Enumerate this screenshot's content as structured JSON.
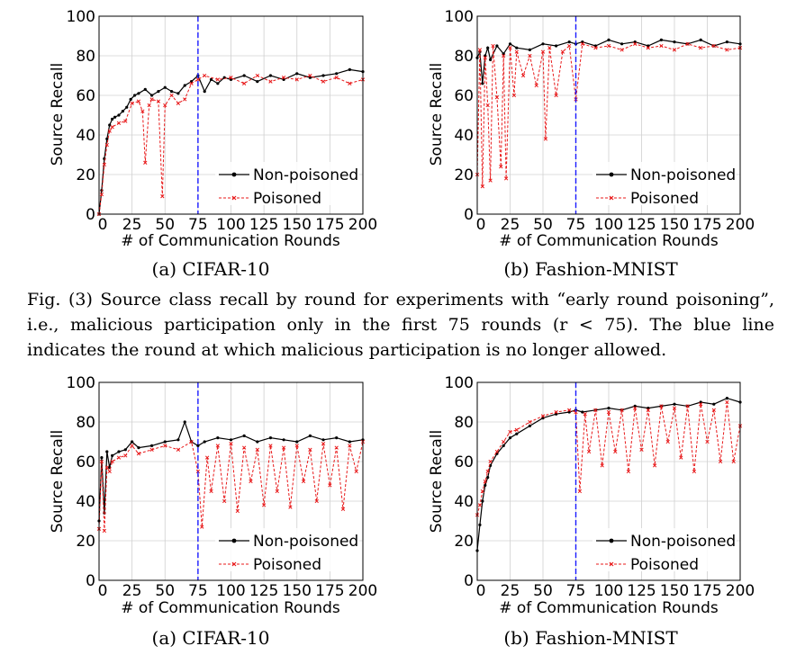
{
  "figure_caption": "Fig. (3)   Source class recall by round for experiments with “early round poisoning”, i.e., malicious participation only in the first 75 rounds (r < 75). The blue line indicates the round at which malicious participation is no longer allowed.",
  "colors": {
    "non_poisoned": "#000000",
    "poisoned": "#e8191a",
    "cutoff": "#1a1aff",
    "grid": "#d0d0d0"
  },
  "chart_data": [
    {
      "type": "line",
      "subcaption": "(a) CIFAR-10",
      "xlabel": "# of Communication Rounds",
      "ylabel": "Source Recall",
      "xlim": [
        0,
        200
      ],
      "ylim": [
        0,
        100
      ],
      "xticks": [
        0,
        25,
        50,
        75,
        100,
        125,
        150,
        175,
        200
      ],
      "yticks": [
        0,
        20,
        40,
        60,
        80,
        100
      ],
      "grid": true,
      "legend": "bottom-right",
      "cutoff_round": 75,
      "series": [
        {
          "name": "Non-poisoned",
          "x": [
            0,
            2,
            4,
            6,
            8,
            10,
            12,
            15,
            18,
            21,
            24,
            27,
            30,
            35,
            40,
            45,
            50,
            55,
            60,
            65,
            70,
            75,
            80,
            85,
            90,
            95,
            100,
            110,
            120,
            130,
            140,
            150,
            160,
            170,
            180,
            190,
            200
          ],
          "y": [
            0,
            12,
            28,
            38,
            45,
            48,
            49,
            50,
            52,
            54,
            58,
            60,
            61,
            63,
            60,
            62,
            64,
            62,
            61,
            65,
            67,
            70,
            62,
            68,
            66,
            69,
            68,
            70,
            67,
            70,
            68,
            71,
            69,
            70,
            71,
            73,
            72
          ]
        },
        {
          "name": "Poisoned",
          "x": [
            0,
            2,
            4,
            6,
            8,
            10,
            15,
            20,
            25,
            30,
            33,
            35,
            38,
            40,
            45,
            48,
            50,
            55,
            60,
            65,
            70,
            75,
            80,
            90,
            100,
            110,
            120,
            130,
            140,
            150,
            160,
            170,
            180,
            190,
            200
          ],
          "y": [
            0,
            10,
            25,
            35,
            42,
            44,
            46,
            47,
            56,
            57,
            52,
            26,
            55,
            58,
            57,
            9,
            55,
            60,
            56,
            58,
            66,
            68,
            70,
            68,
            69,
            66,
            70,
            67,
            69,
            68,
            70,
            67,
            69,
            66,
            68
          ]
        }
      ]
    },
    {
      "type": "line",
      "subcaption": "(b) Fashion-MNIST",
      "xlabel": "# of Communication Rounds",
      "ylabel": "Source Recall",
      "xlim": [
        0,
        200
      ],
      "ylim": [
        0,
        100
      ],
      "xticks": [
        0,
        25,
        50,
        75,
        100,
        125,
        150,
        175,
        200
      ],
      "yticks": [
        0,
        20,
        40,
        60,
        80,
        100
      ],
      "grid": true,
      "legend": "bottom-right",
      "cutoff_round": 75,
      "series": [
        {
          "name": "Non-poisoned",
          "x": [
            0,
            2,
            4,
            6,
            8,
            10,
            15,
            20,
            25,
            30,
            40,
            50,
            60,
            70,
            75,
            80,
            90,
            100,
            110,
            120,
            130,
            140,
            150,
            160,
            170,
            180,
            190,
            200
          ],
          "y": [
            79,
            82,
            66,
            80,
            84,
            78,
            85,
            81,
            86,
            84,
            83,
            86,
            85,
            87,
            86,
            87,
            85,
            88,
            86,
            87,
            85,
            88,
            87,
            86,
            88,
            85,
            87,
            86
          ]
        },
        {
          "name": "Poisoned",
          "x": [
            0,
            2,
            4,
            6,
            8,
            10,
            12,
            15,
            18,
            20,
            22,
            25,
            28,
            30,
            35,
            40,
            45,
            50,
            52,
            55,
            60,
            65,
            70,
            75,
            80,
            90,
            100,
            110,
            120,
            130,
            140,
            150,
            160,
            170,
            180,
            190,
            200
          ],
          "y": [
            20,
            83,
            14,
            79,
            55,
            17,
            85,
            59,
            24,
            80,
            18,
            84,
            60,
            82,
            70,
            80,
            65,
            82,
            38,
            84,
            60,
            82,
            85,
            58,
            86,
            84,
            85,
            83,
            86,
            84,
            85,
            83,
            86,
            84,
            85,
            83,
            84
          ]
        }
      ]
    },
    {
      "type": "line",
      "subcaption": "(a) CIFAR-10",
      "xlabel": "# of Communication Rounds",
      "ylabel": "Source Recall",
      "xlim": [
        0,
        200
      ],
      "ylim": [
        0,
        100
      ],
      "xticks": [
        0,
        25,
        50,
        75,
        100,
        125,
        150,
        175,
        200
      ],
      "yticks": [
        0,
        20,
        40,
        60,
        80,
        100
      ],
      "grid": true,
      "legend": "bottom-right",
      "cutoff_round": 75,
      "series": [
        {
          "name": "Non-poisoned",
          "x": [
            0,
            2,
            4,
            6,
            8,
            10,
            15,
            20,
            25,
            30,
            40,
            50,
            60,
            65,
            70,
            75,
            80,
            90,
            100,
            110,
            120,
            130,
            140,
            150,
            160,
            170,
            180,
            190,
            200
          ],
          "y": [
            30,
            62,
            34,
            65,
            57,
            63,
            65,
            66,
            70,
            67,
            68,
            70,
            71,
            80,
            70,
            68,
            70,
            72,
            71,
            73,
            70,
            72,
            71,
            70,
            73,
            71,
            72,
            70,
            71
          ]
        },
        {
          "name": "Poisoned",
          "x": [
            0,
            2,
            4,
            6,
            8,
            10,
            15,
            20,
            25,
            30,
            40,
            50,
            60,
            70,
            75,
            78,
            82,
            85,
            90,
            95,
            100,
            105,
            110,
            115,
            120,
            125,
            130,
            135,
            140,
            145,
            150,
            155,
            160,
            165,
            170,
            175,
            180,
            185,
            190,
            195,
            200
          ],
          "y": [
            26,
            60,
            25,
            57,
            55,
            60,
            62,
            63,
            68,
            64,
            66,
            68,
            66,
            70,
            55,
            27,
            62,
            45,
            68,
            40,
            69,
            35,
            67,
            50,
            66,
            38,
            68,
            45,
            67,
            37,
            68,
            50,
            66,
            40,
            69,
            48,
            67,
            36,
            68,
            55,
            70
          ]
        }
      ]
    },
    {
      "type": "line",
      "subcaption": "(b) Fashion-MNIST",
      "xlabel": "# of Communication Rounds",
      "ylabel": "Source Recall",
      "xlim": [
        0,
        200
      ],
      "ylim": [
        0,
        100
      ],
      "xticks": [
        0,
        25,
        50,
        75,
        100,
        125,
        150,
        175,
        200
      ],
      "yticks": [
        0,
        20,
        40,
        60,
        80,
        100
      ],
      "grid": true,
      "legend": "bottom-right",
      "cutoff_round": 75,
      "series": [
        {
          "name": "Non-poisoned",
          "x": [
            0,
            2,
            4,
            6,
            8,
            10,
            15,
            20,
            25,
            30,
            40,
            50,
            60,
            70,
            75,
            80,
            90,
            100,
            110,
            120,
            130,
            140,
            150,
            160,
            170,
            180,
            190,
            200
          ],
          "y": [
            15,
            28,
            40,
            48,
            52,
            58,
            64,
            68,
            72,
            74,
            78,
            82,
            84,
            85,
            86,
            85,
            86,
            87,
            86,
            88,
            87,
            88,
            89,
            88,
            90,
            89,
            92,
            90
          ]
        },
        {
          "name": "Poisoned",
          "x": [
            0,
            2,
            4,
            6,
            8,
            10,
            15,
            20,
            25,
            30,
            40,
            50,
            60,
            70,
            75,
            78,
            82,
            85,
            90,
            95,
            100,
            105,
            110,
            115,
            120,
            125,
            130,
            135,
            140,
            145,
            150,
            155,
            160,
            165,
            170,
            175,
            180,
            185,
            190,
            195,
            200
          ],
          "y": [
            33,
            38,
            45,
            50,
            55,
            60,
            65,
            70,
            75,
            76,
            80,
            83,
            85,
            86,
            85,
            45,
            84,
            65,
            86,
            58,
            85,
            65,
            86,
            55,
            87,
            66,
            86,
            58,
            88,
            70,
            87,
            62,
            88,
            55,
            89,
            70,
            86,
            60,
            90,
            60,
            78
          ]
        }
      ]
    }
  ]
}
